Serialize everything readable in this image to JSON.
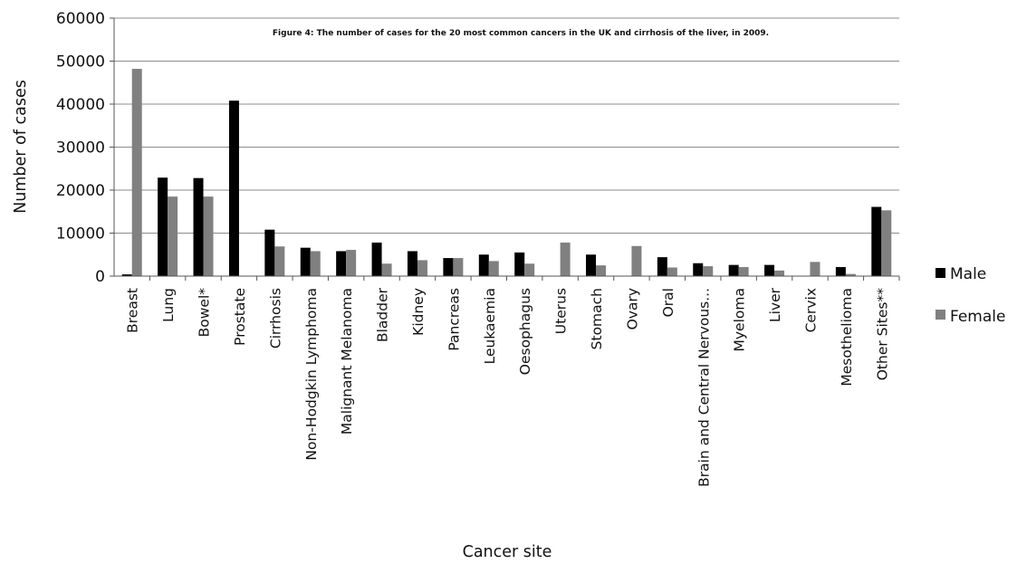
{
  "chart_data": {
    "type": "bar",
    "title": "Figure 4: The number of cases for the 20 most common cancers in the UK and cirrhosis of the liver, in 2009.",
    "xlabel": "Cancer site",
    "ylabel": "Number of cases",
    "ylim": [
      0,
      60000
    ],
    "yticks": [
      "0",
      "10000",
      "20000",
      "30000",
      "40000",
      "50000",
      "60000"
    ],
    "grid": true,
    "legend_position": "right",
    "categories": [
      "Breast",
      "Lung",
      "Bowel*",
      "Prostate",
      "Cirrhosis",
      "Non-Hodgkin Lymphoma",
      "Malignant Melanoma",
      "Bladder",
      "Kidney",
      "Pancreas",
      "Leukaemia",
      "Oesophagus",
      "Uterus",
      "Stomach",
      "Ovary",
      "Oral",
      "Brain and Central Nervous...",
      "Myeloma",
      "Liver",
      "Cervix",
      "Mesothelioma",
      "Other Sites**"
    ],
    "series": [
      {
        "name": "Male",
        "color": "#000000",
        "values": [
          400,
          22900,
          22800,
          40800,
          10800,
          6600,
          5800,
          7800,
          5800,
          4200,
          5000,
          5500,
          0,
          5000,
          0,
          4400,
          3000,
          2600,
          2600,
          0,
          2100,
          16100
        ]
      },
      {
        "name": "Female",
        "color": "#808080",
        "values": [
          48200,
          18500,
          18500,
          0,
          6900,
          5800,
          6100,
          2900,
          3700,
          4200,
          3500,
          2900,
          7800,
          2500,
          7000,
          2000,
          2300,
          2100,
          1300,
          3300,
          500,
          15300
        ]
      }
    ]
  }
}
